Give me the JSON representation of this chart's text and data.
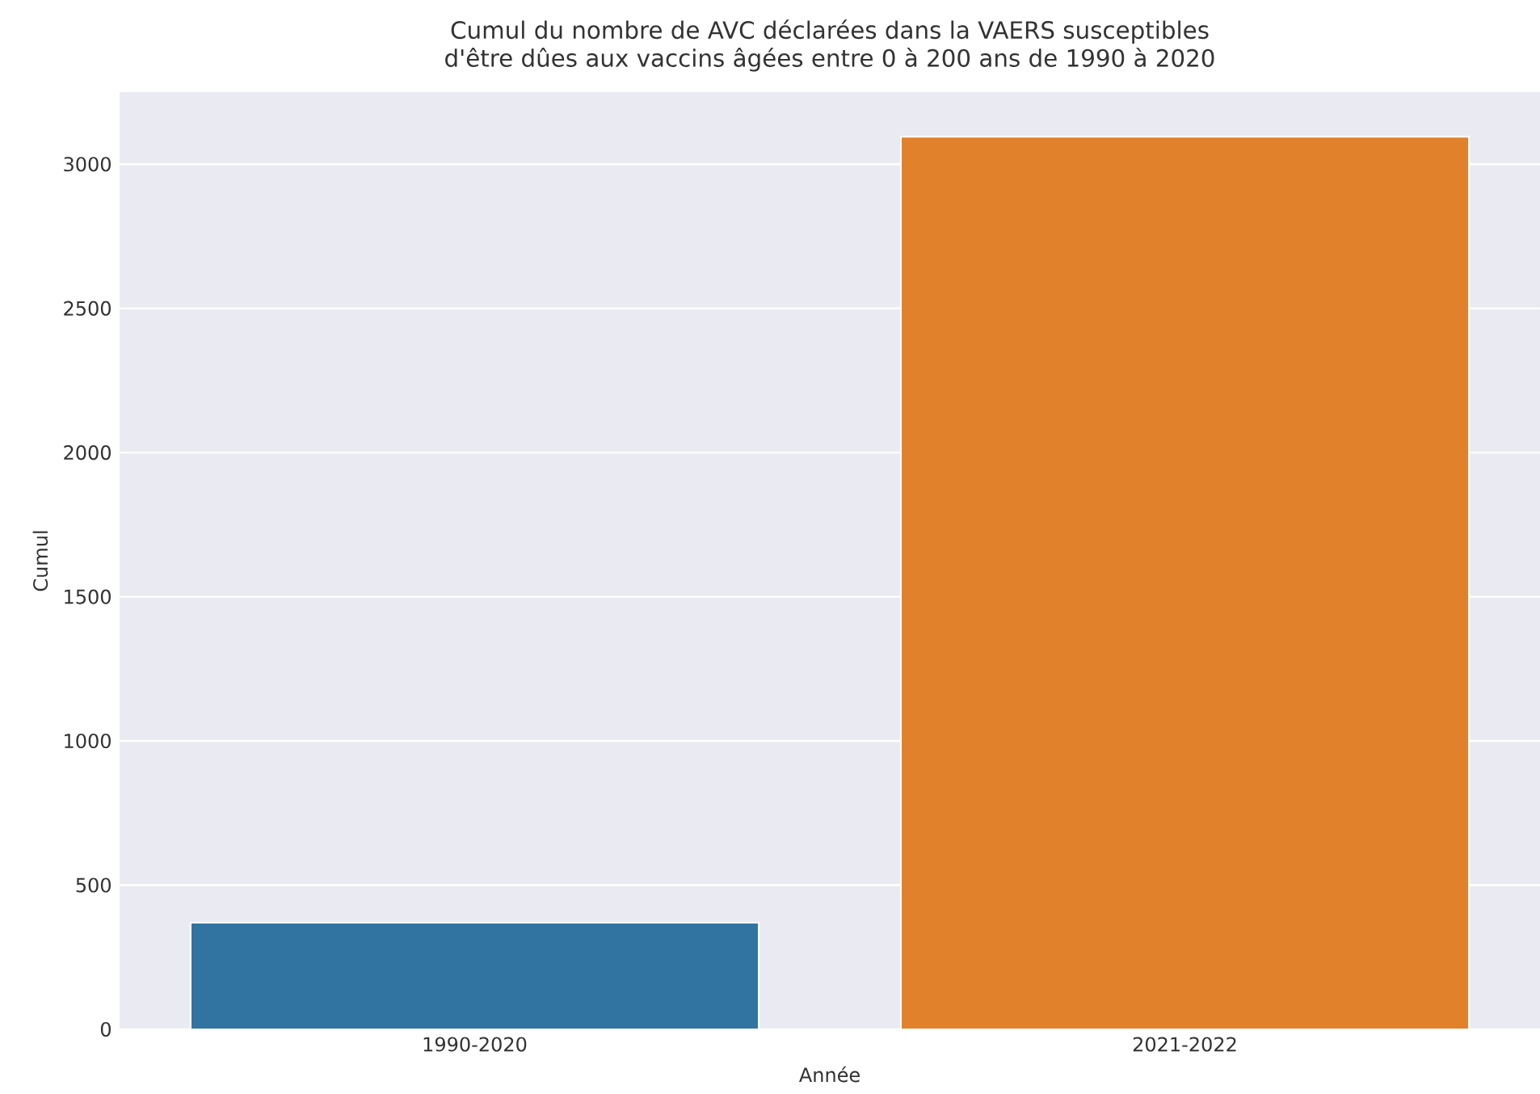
{
  "chart_data": {
    "type": "bar",
    "title": "Cumul du nombre de AVC déclarées dans la VAERS susceptibles\nd'être dûes aux vaccins âgées entre 0 à 200 ans de 1990 à 2020",
    "xlabel": "Année",
    "ylabel": "Cumul",
    "categories": [
      "1990-2020",
      "2021-2022"
    ],
    "values": [
      370,
      3095
    ],
    "colors": [
      "#3274a1",
      "#e1812c"
    ],
    "ylim": [
      0,
      3250
    ],
    "yticks": [
      0,
      500,
      1000,
      1500,
      2000,
      2500,
      3000
    ],
    "grid": "y"
  }
}
